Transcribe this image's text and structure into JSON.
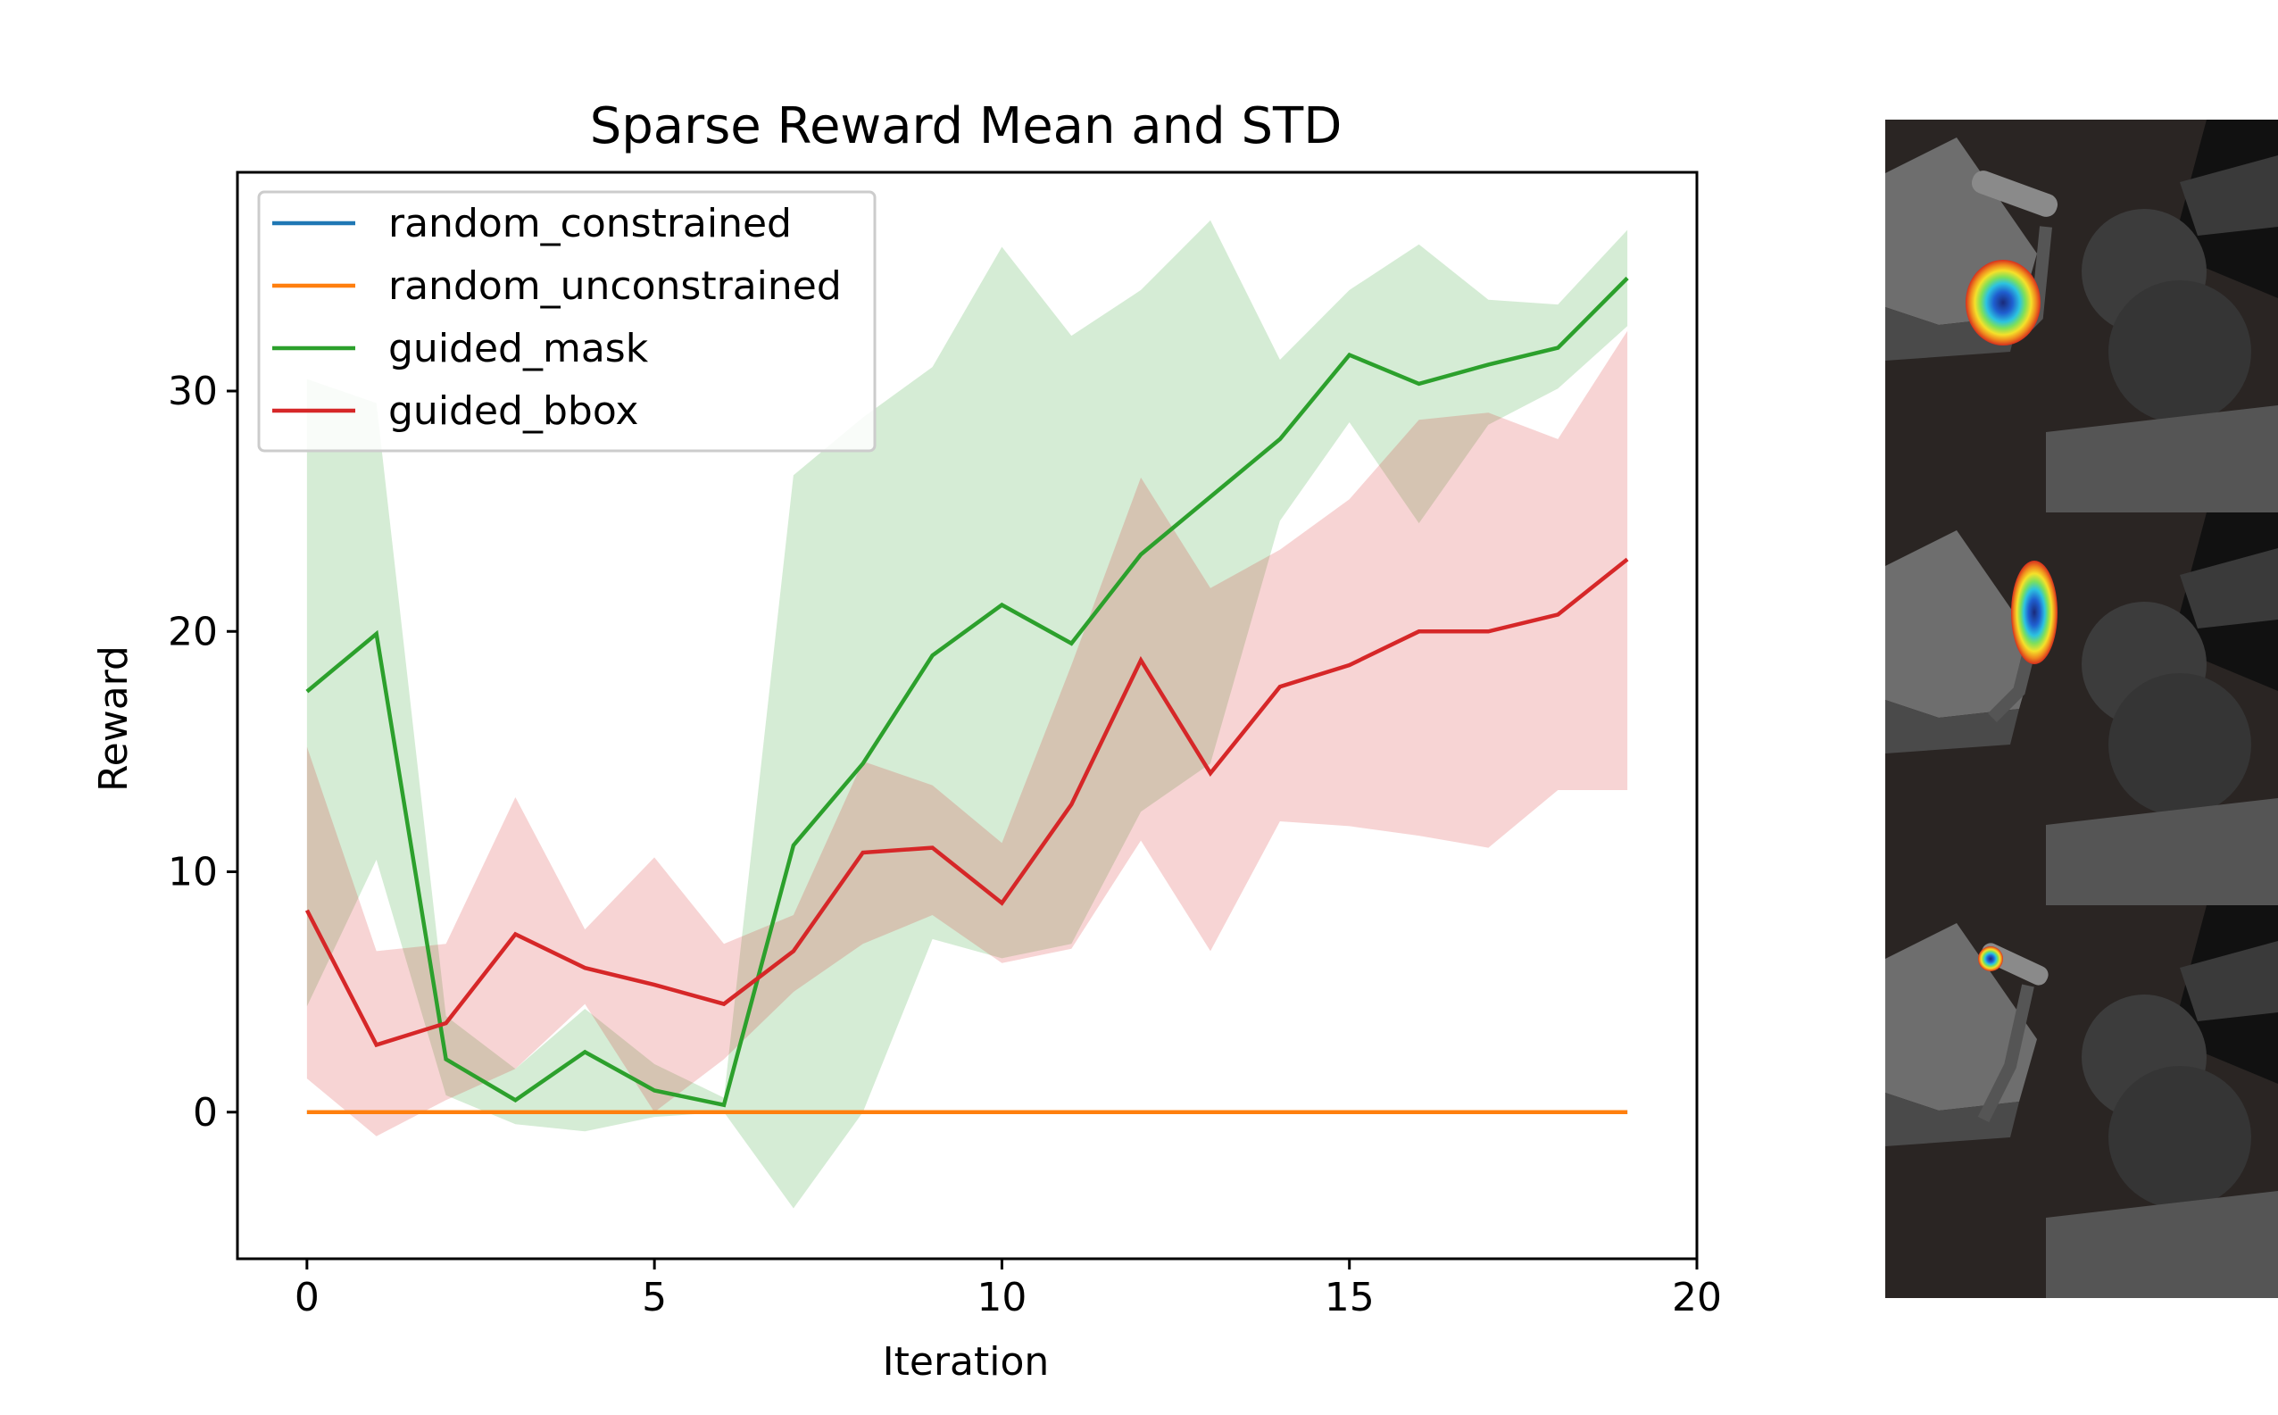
{
  "chart_data": {
    "type": "line",
    "title": "Sparse Reward Mean and STD",
    "xlabel": "Iteration",
    "ylabel": "Reward",
    "xlim": [
      -1,
      20
    ],
    "ylim": [
      -6.1,
      39.1
    ],
    "xticks": [
      0,
      5,
      10,
      15,
      20
    ],
    "xtick_labels": [
      "0",
      "5",
      "10",
      "15",
      "20"
    ],
    "yticks": [
      0,
      10,
      20,
      30
    ],
    "ytick_labels": [
      "0",
      "10",
      "20",
      "30"
    ],
    "grid": false,
    "legend_position": "top-left",
    "x": [
      0,
      1,
      2,
      3,
      4,
      5,
      6,
      7,
      8,
      9,
      10,
      11,
      12,
      13,
      14,
      15,
      16,
      17,
      18,
      19
    ],
    "series": [
      {
        "name": "random_constrained",
        "color": "#1f77b4",
        "values": [
          0,
          0,
          0,
          0,
          0,
          0,
          0,
          0,
          0,
          0,
          0,
          0,
          0,
          0,
          0,
          0,
          0,
          0,
          0,
          0
        ]
      },
      {
        "name": "random_unconstrained",
        "color": "#ff7f0e",
        "values": [
          0,
          0,
          0,
          0,
          0,
          0,
          0,
          0,
          0,
          0,
          0,
          0,
          0,
          0,
          0,
          0,
          0,
          0,
          0,
          0
        ]
      },
      {
        "name": "guided_mask",
        "color": "#2ca02c",
        "values": [
          17.5,
          19.9,
          2.2,
          0.5,
          2.5,
          0.9,
          0.3,
          11.1,
          14.5,
          19.0,
          21.1,
          19.5,
          23.2,
          25.6,
          28.0,
          31.5,
          30.3,
          31.1,
          31.8,
          34.7
        ],
        "upper": [
          30.5,
          29.5,
          4.0,
          1.8,
          4.3,
          2.0,
          0.6,
          26.5,
          28.9,
          31.0,
          36.0,
          32.3,
          34.2,
          37.1,
          31.3,
          34.2,
          36.1,
          33.8,
          33.6,
          36.7
        ],
        "lower": [
          4.4,
          10.5,
          0.7,
          -0.5,
          -0.8,
          -0.2,
          0.0,
          -4.0,
          0.0,
          7.2,
          6.4,
          7.0,
          12.5,
          14.5,
          24.6,
          28.7,
          24.5,
          28.6,
          30.1,
          32.7
        ]
      },
      {
        "name": "guided_bbox",
        "color": "#d62728",
        "values": [
          8.4,
          2.8,
          3.7,
          7.4,
          6.0,
          5.3,
          4.5,
          6.7,
          10.8,
          11.0,
          8.7,
          12.8,
          18.8,
          14.1,
          17.7,
          18.6,
          20.0,
          20.0,
          20.7,
          23.0
        ],
        "upper": [
          15.2,
          6.7,
          7.0,
          13.1,
          7.6,
          10.6,
          7.0,
          8.2,
          14.6,
          13.6,
          11.2,
          18.6,
          26.4,
          21.8,
          23.4,
          25.5,
          28.8,
          29.1,
          28.0,
          32.5
        ],
        "lower": [
          1.4,
          -1.0,
          0.5,
          1.8,
          4.5,
          0.0,
          2.2,
          5.0,
          7.0,
          8.2,
          6.2,
          6.8,
          11.3,
          6.7,
          12.1,
          11.9,
          11.5,
          11.0,
          13.4,
          13.4
        ]
      }
    ]
  }
}
